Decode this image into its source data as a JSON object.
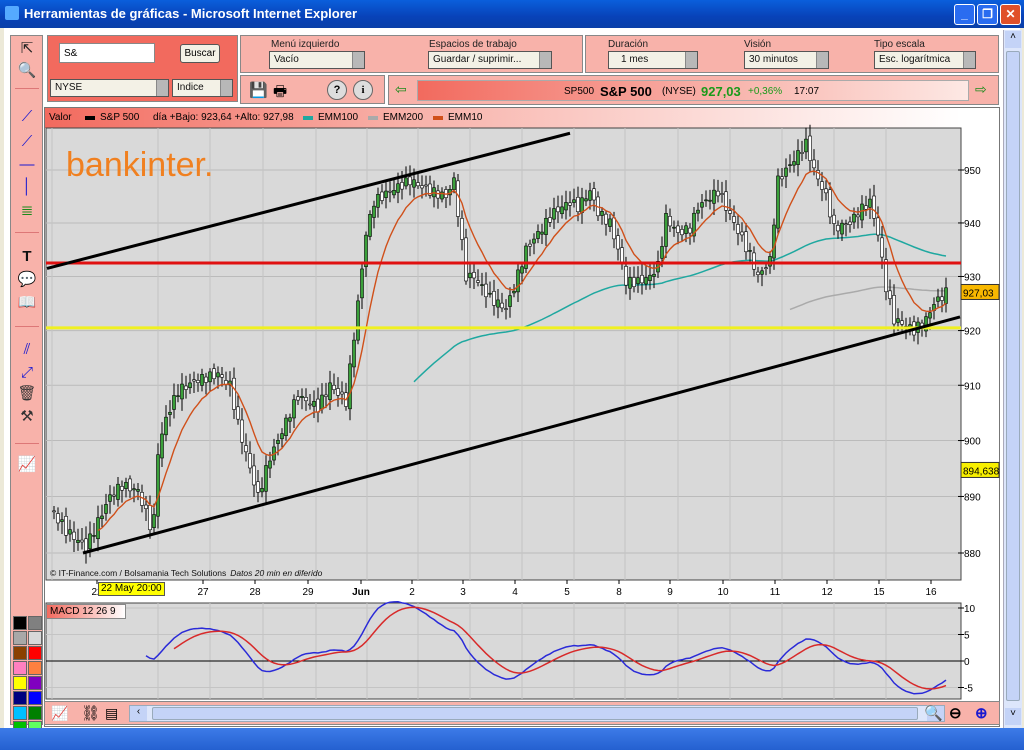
{
  "window": {
    "title": "Herramientas de gráficas - Microsoft Internet Explorer"
  },
  "search": {
    "value": "S&",
    "button": "Buscar",
    "market": "NYSE",
    "type": "Indice"
  },
  "menus": {
    "left_menu": {
      "label": "Menú izquierdo",
      "value": "Vacío"
    },
    "workspaces": {
      "label": "Espacios de trabajo",
      "value": "Guardar / suprimir..."
    },
    "duration": {
      "label": "Duración",
      "value": "1 mes"
    },
    "vision": {
      "label": "Visión",
      "value": "30 minutos"
    },
    "scale": {
      "label": "Tipo escala",
      "value": "Esc. logarítmica"
    }
  },
  "ticker": {
    "symbol": "SP500",
    "name": "S&P 500",
    "exchange": "(NYSE)",
    "price": "927,03",
    "change": "+0,36%",
    "time": "17:07",
    "price_color": "#1a9a1a"
  },
  "legend": {
    "valor": "Valor",
    "series": "S&P 500",
    "range": "día +Bajo: 923,64 +Alto: 927,98",
    "emm100": "EMM100",
    "emm200": "EMM200",
    "emm10": "EMM10"
  },
  "brand": "bankinter.",
  "credits": {
    "source": "© IT-Finance.com / Bolsamania Tech Solutions",
    "delay": "Datos 20 min en diferido"
  },
  "cursor_date": "22 May 20:00",
  "macd": {
    "label": "MACD 12 26 9",
    "ticks": [
      "10",
      "5",
      "0",
      "-5"
    ]
  },
  "colors": {
    "up": "#3aa03a",
    "down": "#222222",
    "emm100": "#1fa8a0",
    "emm200": "#aaaaaa",
    "emm10": "#d0501a",
    "macd": "#2a2ad8",
    "signal": "#d82a2a",
    "resistance": "#e01010",
    "support": "#f0f020",
    "trend": "#000000",
    "panel_pink": "#f8b2aa"
  },
  "palette": [
    "#000000",
    "#808080",
    "#a8a8a8",
    "#d8d8d8",
    "#8b4000",
    "#ff0000",
    "#ff80c0",
    "#ff8040",
    "#ffff00",
    "#8000c0",
    "#000080",
    "#0000ff",
    "#00c0ff",
    "#008000",
    "#00c000",
    "#60ff60"
  ],
  "chart_data": {
    "type": "candlestick",
    "scale": "log",
    "ylim": [
      877,
      958
    ],
    "yticks": [
      880,
      890,
      900,
      910,
      920,
      930,
      940,
      950
    ],
    "xticks": [
      "22",
      "27",
      "28",
      "29",
      "Jun",
      "2",
      "3",
      "4",
      "5",
      "8",
      "9",
      "10",
      "11",
      "12",
      "15",
      "16"
    ],
    "interval": "30 minutos",
    "close_keypoints": [
      [
        0,
        888
      ],
      [
        4,
        884
      ],
      [
        9,
        881
      ],
      [
        15,
        890
      ],
      [
        18,
        892
      ],
      [
        22,
        891
      ],
      [
        25,
        885
      ],
      [
        26,
        886
      ],
      [
        27,
        898
      ],
      [
        29,
        904
      ],
      [
        32,
        909
      ],
      [
        37,
        911
      ],
      [
        42,
        912
      ],
      [
        45,
        910
      ],
      [
        47,
        903
      ],
      [
        50,
        895
      ],
      [
        52,
        890
      ],
      [
        55,
        897
      ],
      [
        57,
        900
      ],
      [
        60,
        905
      ],
      [
        62,
        908
      ],
      [
        67,
        906
      ],
      [
        70,
        910
      ],
      [
        74,
        907
      ],
      [
        75,
        913
      ],
      [
        77,
        925
      ],
      [
        79,
        938
      ],
      [
        81,
        944
      ],
      [
        85,
        946
      ],
      [
        90,
        948
      ],
      [
        95,
        946
      ],
      [
        99,
        945
      ],
      [
        101,
        948
      ],
      [
        102,
        942
      ],
      [
        104,
        930
      ],
      [
        106,
        930
      ],
      [
        110,
        926
      ],
      [
        114,
        924
      ],
      [
        116,
        928
      ],
      [
        119,
        935
      ],
      [
        122,
        938
      ],
      [
        126,
        942
      ],
      [
        130,
        944
      ],
      [
        132,
        943
      ],
      [
        135,
        946
      ],
      [
        137,
        942
      ],
      [
        140,
        940
      ],
      [
        142,
        935
      ],
      [
        144,
        929
      ],
      [
        147,
        929
      ],
      [
        150,
        930
      ],
      [
        152,
        932
      ],
      [
        154,
        941
      ],
      [
        157,
        938
      ],
      [
        160,
        939
      ],
      [
        162,
        943
      ],
      [
        167,
        946
      ],
      [
        171,
        940
      ],
      [
        175,
        934
      ],
      [
        177,
        930
      ],
      [
        180,
        933
      ],
      [
        182,
        948
      ],
      [
        186,
        952
      ],
      [
        189,
        955
      ],
      [
        191,
        950
      ],
      [
        194,
        945
      ],
      [
        196,
        939
      ],
      [
        200,
        940
      ],
      [
        202,
        942
      ],
      [
        205,
        944
      ],
      [
        207,
        938
      ],
      [
        209,
        928
      ],
      [
        211,
        922
      ],
      [
        214,
        921
      ],
      [
        216,
        920
      ],
      [
        219,
        922
      ],
      [
        221,
        925
      ],
      [
        224,
        927
      ]
    ],
    "horizontal_lines": [
      {
        "value": 932.5,
        "color": "resistance"
      },
      {
        "value": 920.5,
        "color": "support"
      }
    ],
    "trend_lines": [
      {
        "from": [
          0,
          931.5
        ],
        "to": [
          130,
          957
        ]
      },
      {
        "from": [
          9,
          880
        ],
        "to": [
          228,
          922.5
        ]
      }
    ],
    "price_labels": [
      {
        "value": "927,03",
        "bg": "#f8b800"
      },
      {
        "value": "894,638",
        "bg": "#f8f000"
      }
    ],
    "macd_ylim": [
      -7,
      11
    ]
  }
}
